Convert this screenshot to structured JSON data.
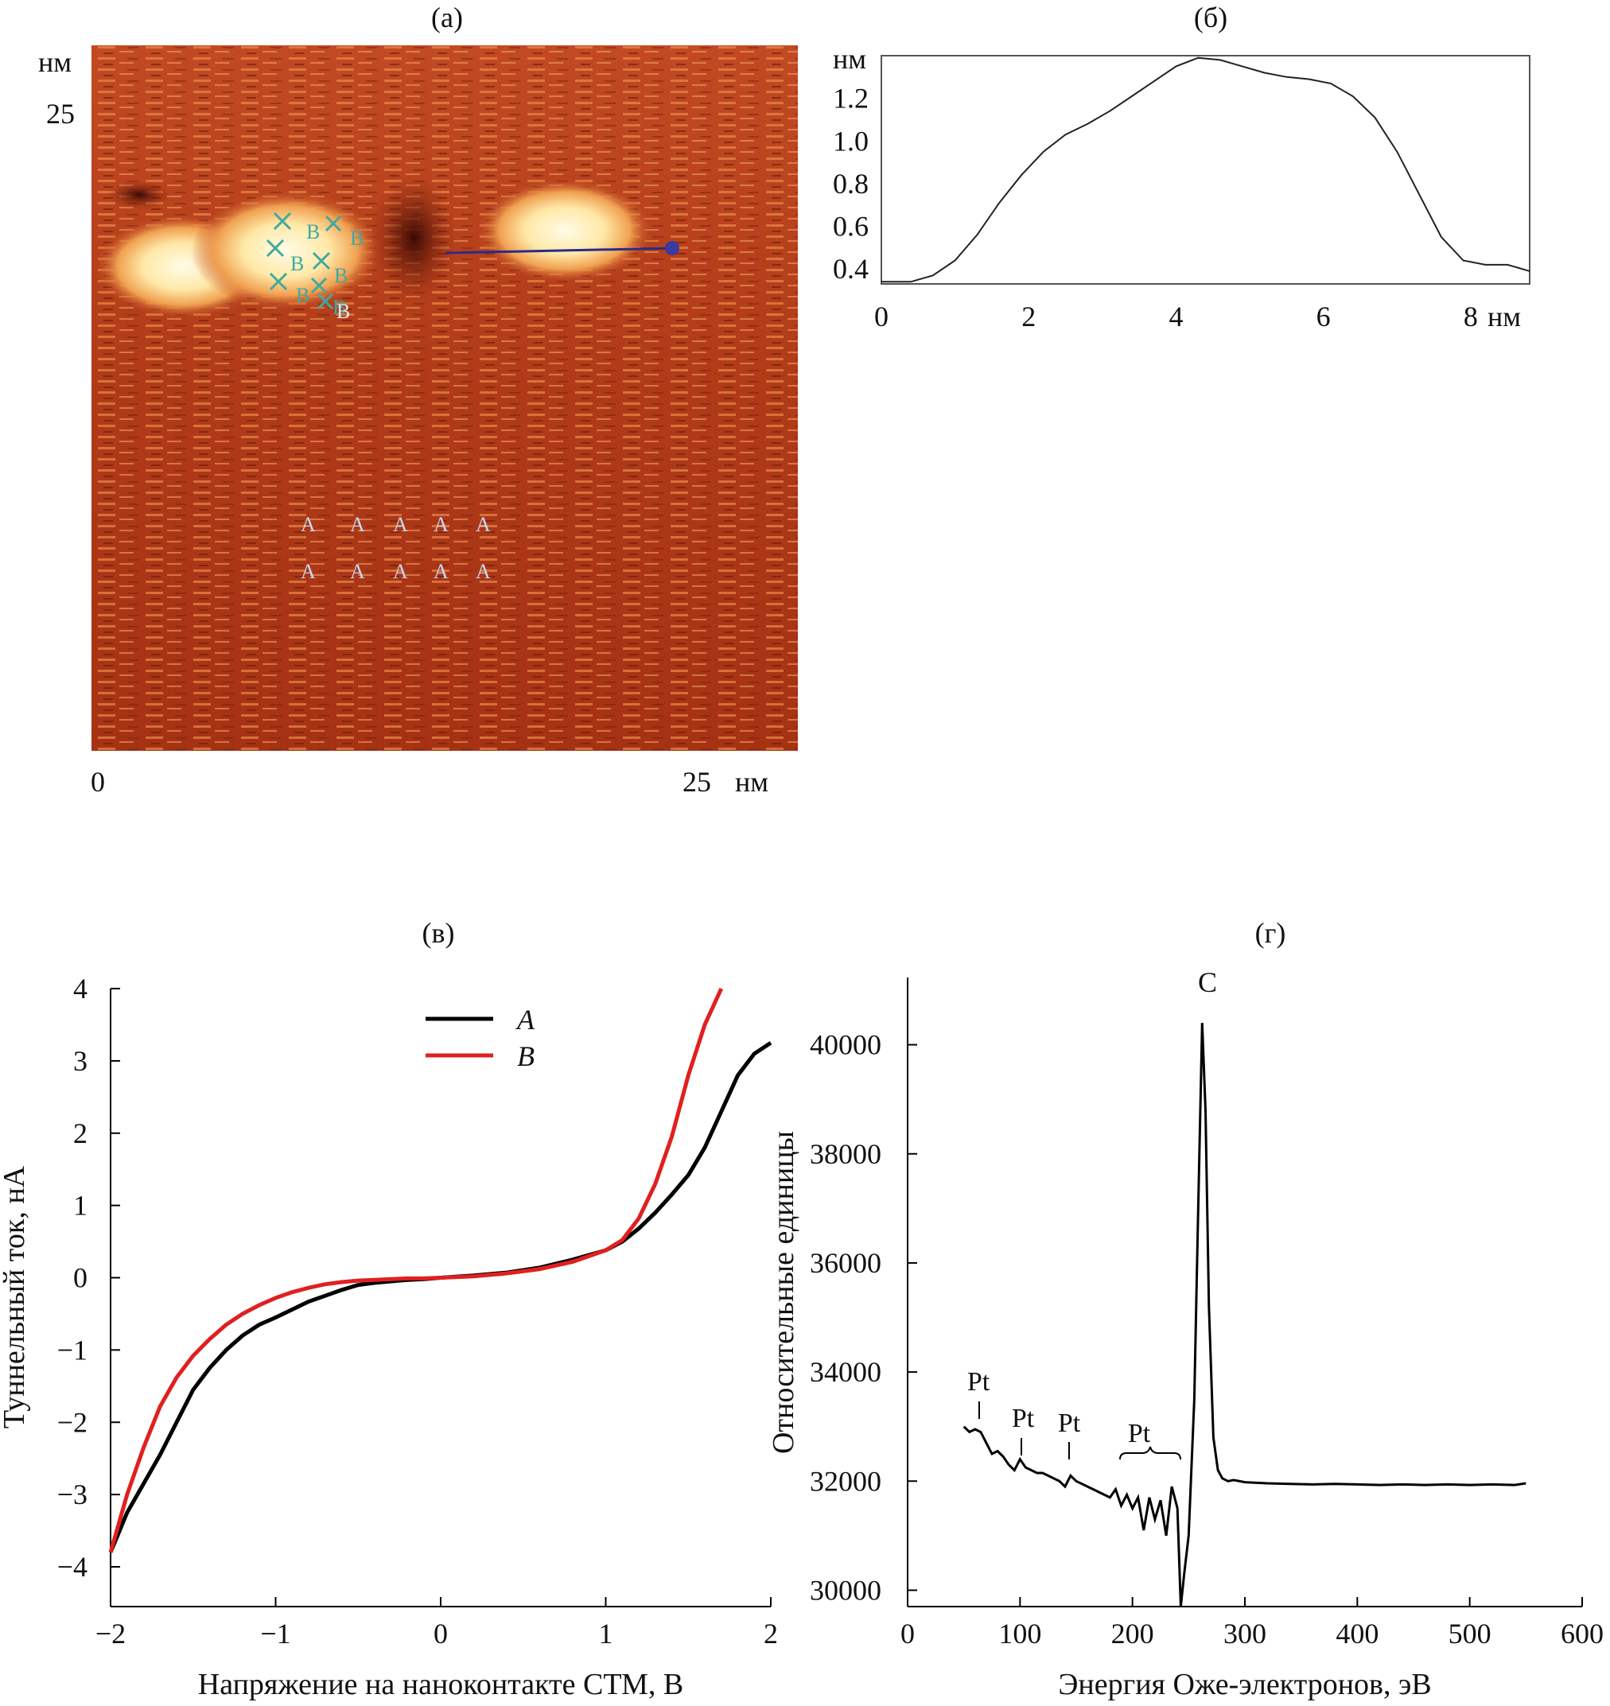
{
  "colors": {
    "line_a": "#000000",
    "line_b": "#e02020",
    "profile": "#222222",
    "auger": "#000000"
  },
  "panel_a": {
    "title": "(а)",
    "unit_y": "нм",
    "y_tick": "25",
    "x_tick_start": "0",
    "x_tick_end": "25",
    "unit_x": "нм",
    "marker_b": "B",
    "marker_a": "A",
    "image": "STM topography image (nanoparticles on surface)"
  },
  "panel_b": {
    "title": "(б)",
    "chart_data": {
      "type": "line",
      "xlabel": "нм",
      "ylabel": "нм",
      "xlim": [
        0,
        8.8
      ],
      "ylim": [
        0.33,
        1.4
      ],
      "x_ticks": [
        0,
        2,
        4,
        6,
        8
      ],
      "y_ticks": [
        0.4,
        0.6,
        0.8,
        1.0,
        1.2
      ],
      "y_tick_labels": [
        "0.4",
        "0.6",
        "0.8",
        "1.0",
        "1.2"
      ],
      "series": [
        {
          "name": "profile",
          "x": [
            0,
            0.4,
            0.7,
            1.0,
            1.3,
            1.6,
            1.9,
            2.2,
            2.5,
            2.8,
            3.1,
            3.4,
            3.7,
            4.0,
            4.3,
            4.6,
            4.9,
            5.2,
            5.5,
            5.8,
            6.1,
            6.4,
            6.7,
            7.0,
            7.3,
            7.6,
            7.9,
            8.2,
            8.5,
            8.8
          ],
          "y": [
            0.34,
            0.34,
            0.37,
            0.44,
            0.56,
            0.71,
            0.84,
            0.95,
            1.03,
            1.08,
            1.14,
            1.21,
            1.28,
            1.35,
            1.39,
            1.38,
            1.35,
            1.32,
            1.3,
            1.29,
            1.27,
            1.21,
            1.11,
            0.95,
            0.75,
            0.55,
            0.44,
            0.42,
            0.42,
            0.39
          ]
        }
      ]
    }
  },
  "panel_c": {
    "title": "(в)",
    "chart_data": {
      "type": "line",
      "xlabel": "Напряжение на наноконтакте СТМ, В",
      "ylabel": "Туннельный ток, нА",
      "xlim": [
        -2,
        2
      ],
      "ylim": [
        -4,
        4
      ],
      "x_ticks": [
        -2,
        -1,
        0,
        1,
        2
      ],
      "x_tick_labels": [
        "−2",
        "−1",
        "0",
        "1",
        "2"
      ],
      "y_ticks": [
        -4,
        -3,
        -2,
        -1,
        0,
        1,
        2,
        3,
        4
      ],
      "y_tick_labels": [
        "−4",
        "−3",
        "−2",
        "−1",
        "0",
        "1",
        "2",
        "3",
        "4"
      ],
      "series": [
        {
          "name": "A",
          "x": [
            -2.0,
            -1.9,
            -1.8,
            -1.7,
            -1.6,
            -1.5,
            -1.4,
            -1.3,
            -1.2,
            -1.1,
            -1.0,
            -0.9,
            -0.8,
            -0.7,
            -0.6,
            -0.5,
            -0.4,
            -0.3,
            -0.2,
            -0.1,
            0.0,
            0.2,
            0.4,
            0.6,
            0.8,
            1.0,
            1.1,
            1.2,
            1.3,
            1.4,
            1.5,
            1.6,
            1.7,
            1.8,
            1.9,
            2.0
          ],
          "y": [
            -3.8,
            -3.25,
            -2.85,
            -2.45,
            -2.0,
            -1.55,
            -1.25,
            -1.0,
            -0.8,
            -0.65,
            -0.55,
            -0.44,
            -0.33,
            -0.25,
            -0.17,
            -0.1,
            -0.07,
            -0.05,
            -0.03,
            -0.02,
            0.0,
            0.03,
            0.07,
            0.14,
            0.25,
            0.38,
            0.5,
            0.68,
            0.9,
            1.15,
            1.42,
            1.8,
            2.3,
            2.8,
            3.1,
            3.25
          ]
        },
        {
          "name": "B",
          "x": [
            -2.0,
            -1.9,
            -1.8,
            -1.7,
            -1.6,
            -1.5,
            -1.4,
            -1.3,
            -1.2,
            -1.1,
            -1.0,
            -0.9,
            -0.8,
            -0.7,
            -0.6,
            -0.5,
            -0.4,
            -0.3,
            -0.2,
            -0.1,
            0.0,
            0.2,
            0.4,
            0.6,
            0.8,
            1.0,
            1.1,
            1.2,
            1.3,
            1.4,
            1.5,
            1.6,
            1.7
          ],
          "y": [
            -3.8,
            -3.0,
            -2.35,
            -1.78,
            -1.38,
            -1.08,
            -0.85,
            -0.65,
            -0.5,
            -0.38,
            -0.28,
            -0.2,
            -0.14,
            -0.09,
            -0.06,
            -0.04,
            -0.03,
            -0.02,
            -0.01,
            -0.01,
            0.0,
            0.02,
            0.06,
            0.12,
            0.22,
            0.38,
            0.52,
            0.82,
            1.3,
            1.95,
            2.8,
            3.5,
            4.0
          ]
        }
      ],
      "legend": [
        "A",
        "B"
      ]
    }
  },
  "panel_d": {
    "title": "(г)",
    "chart_data": {
      "type": "line",
      "xlabel": "Энергия Оже-электронов, эВ",
      "ylabel": "Относительные единицы",
      "xlim": [
        0,
        600
      ],
      "ylim": [
        29700,
        41000
      ],
      "x_ticks": [
        0,
        100,
        200,
        300,
        400,
        500,
        600
      ],
      "y_ticks": [
        30000,
        32000,
        34000,
        36000,
        38000,
        40000
      ],
      "series": [
        {
          "name": "auger",
          "x": [
            50,
            55,
            60,
            65,
            70,
            75,
            80,
            85,
            90,
            95,
            100,
            105,
            110,
            115,
            120,
            125,
            130,
            135,
            140,
            145,
            150,
            155,
            160,
            165,
            170,
            175,
            180,
            185,
            190,
            195,
            200,
            205,
            210,
            215,
            220,
            225,
            230,
            235,
            240,
            243,
            246,
            250,
            255,
            258,
            262,
            265,
            268,
            272,
            276,
            280,
            285,
            290,
            300,
            320,
            340,
            360,
            380,
            400,
            420,
            440,
            460,
            480,
            500,
            520,
            540,
            550
          ],
          "y": [
            33000,
            32900,
            32950,
            32900,
            32700,
            32500,
            32550,
            32450,
            32300,
            32200,
            32400,
            32250,
            32200,
            32150,
            32150,
            32100,
            32050,
            32000,
            31900,
            32100,
            32000,
            31950,
            31900,
            31850,
            31800,
            31750,
            31700,
            31850,
            31550,
            31750,
            31500,
            31700,
            31100,
            31700,
            31300,
            31650,
            31000,
            31900,
            31500,
            29700,
            30300,
            31000,
            33500,
            36500,
            40400,
            38800,
            35200,
            32800,
            32200,
            32050,
            32000,
            32020,
            31980,
            31960,
            31950,
            31940,
            31950,
            31940,
            31930,
            31940,
            31930,
            31940,
            31930,
            31940,
            31930,
            31960
          ]
        }
      ],
      "annotations": [
        {
          "text": "C",
          "x": 265,
          "y": 40400
        },
        {
          "text": "Pt",
          "x": 63,
          "y": 32950
        },
        {
          "text": "Pt",
          "x": 100,
          "y": 32400
        },
        {
          "text": "Pt",
          "x": 142,
          "y": 32100
        },
        {
          "text": "Pt",
          "x": 205,
          "y": 31850
        }
      ]
    }
  }
}
